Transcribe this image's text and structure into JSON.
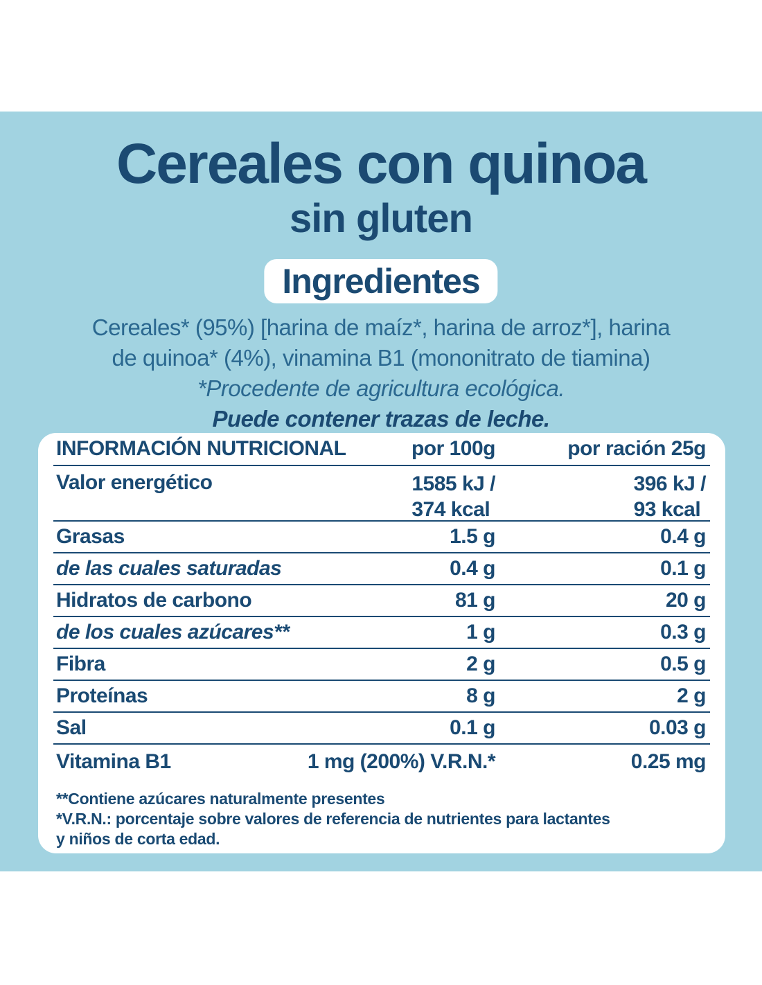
{
  "colors": {
    "background_blue": "#a2d3e1",
    "navy": "#1b4a72",
    "ingredients_blue": "#2b6890",
    "card_white": "#ffffff"
  },
  "title": {
    "line1": "Cereales con quinoa",
    "line2": "sin gluten"
  },
  "ingredients": {
    "badge_label": "Ingredientes",
    "line1": "Cereales* (95%) [harina de maíz*, harina de arroz*], harina",
    "line2": "de quinoa* (4%), vinamina B1 (mononitrato de tiamina)",
    "organic_note": "*Procedente de agricultura ecológica.",
    "allergen_warning": "Puede contener trazas de leche."
  },
  "nutrition_table": {
    "headers": {
      "col1": "INFORMACIÓN NUTRICIONAL",
      "col2": "por 100g",
      "col3": "por ración 25g"
    },
    "rows": [
      {
        "label": "Valor energético",
        "per_100g": [
          "1585 kJ /",
          "374 kcal"
        ],
        "per_portion": [
          "396 kJ /",
          "93 kcal"
        ]
      },
      {
        "label": "Grasas",
        "per_100g": "1.5 g",
        "per_portion": "0.4 g"
      },
      {
        "label": "de las cuales saturadas",
        "per_100g": "0.4 g",
        "per_portion": "0.1 g"
      },
      {
        "label": "Hidratos de carbono",
        "per_100g": "81 g",
        "per_portion": "20 g"
      },
      {
        "label": "de los cuales azúcares**",
        "per_100g": "1 g",
        "per_portion": "0.3 g"
      },
      {
        "label": "Fibra",
        "per_100g": "2 g",
        "per_portion": "0.5 g"
      },
      {
        "label": "Proteínas",
        "per_100g": "8 g",
        "per_portion": "2 g"
      },
      {
        "label": "Sal",
        "per_100g": "0.1 g",
        "per_portion": "0.03 g"
      },
      {
        "label": "Vitamina B1",
        "per_100g": "1 mg (200%) V.R.N.*",
        "per_portion": "0.25 mg"
      }
    ],
    "footnotes": {
      "sugars": "**Contiene azúcares naturalmente presentes",
      "vrn_line1": "*V.R.N.: porcentaje sobre valores de referencia de nutrientes para lactantes",
      "vrn_line2": "y niños de corta edad."
    }
  }
}
